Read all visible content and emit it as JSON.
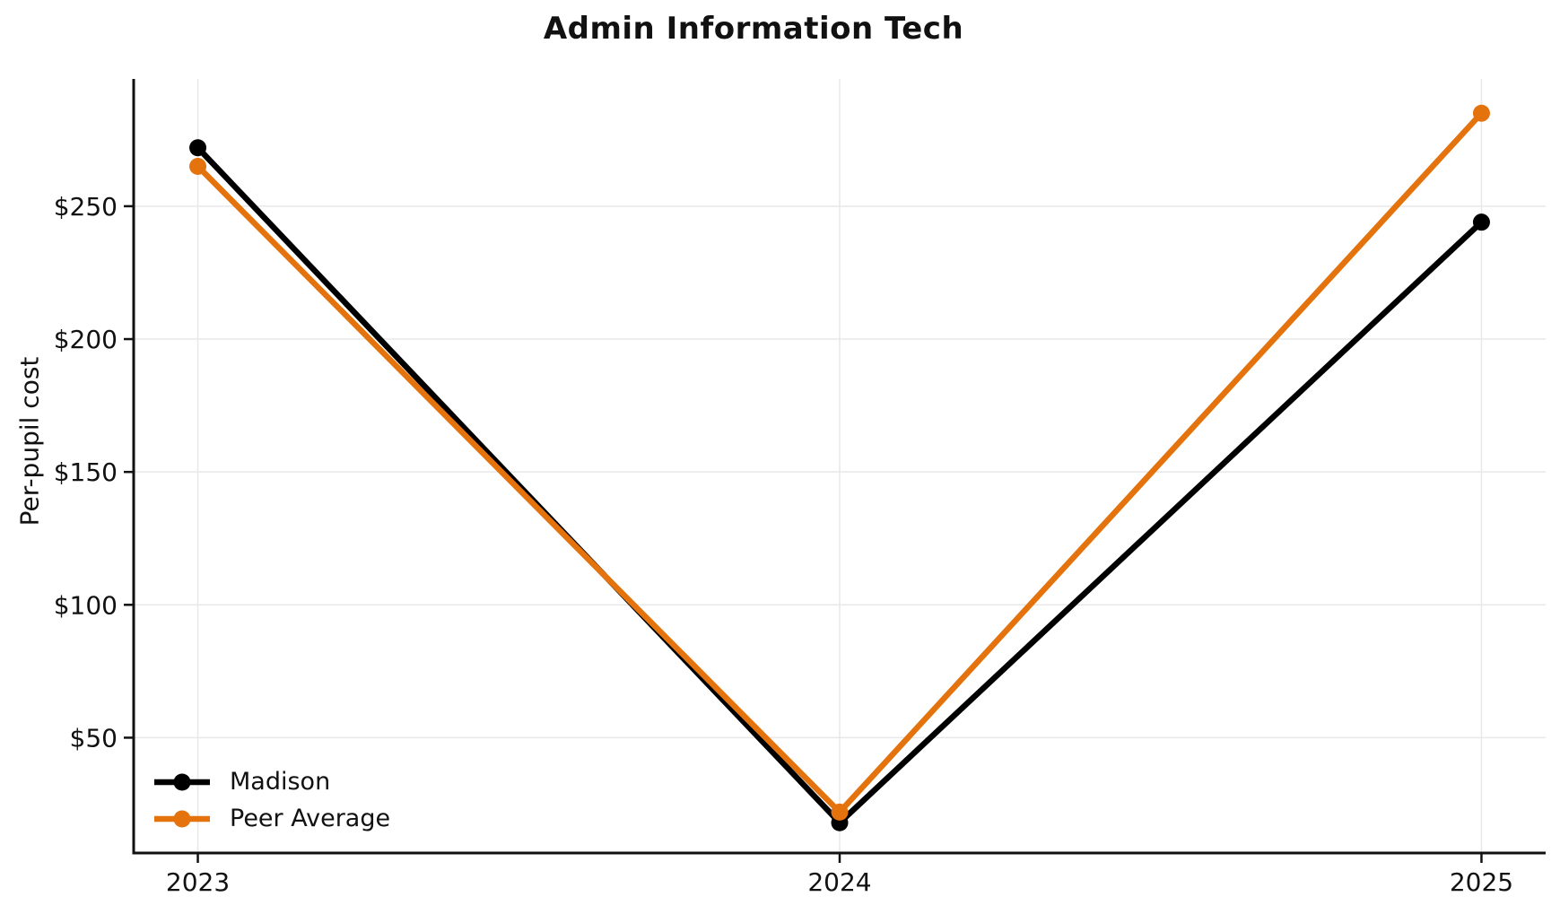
{
  "page": {
    "background": "#ffffff",
    "text_color": "#111111"
  },
  "chart_data": {
    "type": "line",
    "title": "Admin Information Tech",
    "xlabel": "",
    "ylabel": "Per-pupil cost",
    "x": [
      2023,
      2024,
      2025
    ],
    "x_tick_labels": [
      "2023",
      "2024",
      "2025"
    ],
    "y_ticks": [
      50,
      100,
      150,
      200,
      250
    ],
    "y_tick_labels": [
      "$50",
      "$100",
      "$150",
      "$200",
      "$250"
    ],
    "y_tick_prefix": "$",
    "xlim": [
      2022.9,
      2025.1
    ],
    "ylim": [
      6.6,
      297.9
    ],
    "grid": true,
    "gridline_color": "#e8e8e8",
    "axis_color": "#111111",
    "legend_position": "lower-left",
    "legend_frame": false,
    "marker": "circle",
    "series": [
      {
        "name": "Madison",
        "color": "#000000",
        "values": [
          272,
          18,
          244
        ]
      },
      {
        "name": "Peer Average",
        "color": "#e4730d",
        "values": [
          265,
          22,
          285
        ]
      }
    ]
  }
}
